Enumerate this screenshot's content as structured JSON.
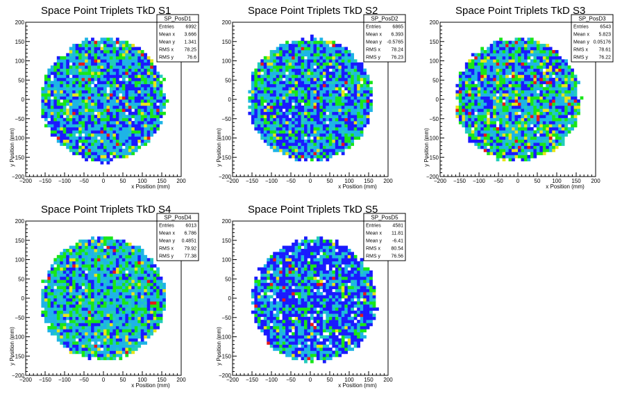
{
  "chart_data": [
    {
      "type": "heatmap",
      "title": "Space Point Triplets TkD S1",
      "xlabel": "x Position (mm)",
      "ylabel": "y Position (mm)",
      "xlim": [
        -200,
        200
      ],
      "ylim": [
        -200,
        200
      ],
      "xticks": [
        "−200",
        "−150",
        "−100",
        "−50",
        "0",
        "50",
        "100",
        "150",
        "200"
      ],
      "yticks": [
        "−200",
        "−150",
        "−100",
        "−50",
        "0",
        "50",
        "100",
        "150",
        "200"
      ],
      "grid": false,
      "stats": {
        "name": "SP_PosD1",
        "rows": [
          {
            "label": "Entries",
            "value": "6992"
          },
          {
            "label": "Mean x",
            "value": "3.666"
          },
          {
            "label": "Mean y",
            "value": "1.341"
          },
          {
            "label": "RMS x",
            "value": "78.25"
          },
          {
            "label": "RMS y",
            "value": "76.6"
          }
        ]
      },
      "footprint": {
        "cx": 0,
        "cy": 0,
        "r": 160
      },
      "density": {
        "fill": 0.985,
        "blue": 0.34,
        "cyan": 0.36,
        "green": 0.2,
        "yellow": 0.055,
        "red": 0.02,
        "seed": 11
      }
    },
    {
      "type": "heatmap",
      "title": "Space Point Triplets TkD S2",
      "xlabel": "x Position (mm)",
      "ylabel": "y Position (mm)",
      "xlim": [
        -200,
        200
      ],
      "ylim": [
        -200,
        200
      ],
      "xticks": [
        "−200",
        "−150",
        "−100",
        "−50",
        "0",
        "50",
        "100",
        "150",
        "200"
      ],
      "yticks": [
        "−200",
        "−150",
        "−100",
        "−50",
        "0",
        "50",
        "100",
        "150",
        "200"
      ],
      "grid": false,
      "stats": {
        "name": "SP_PosD2",
        "rows": [
          {
            "label": "Entries",
            "value": "6865"
          },
          {
            "label": "Mean x",
            "value": "6.393"
          },
          {
            "label": "Mean y",
            "value": "-0.5765"
          },
          {
            "label": "RMS x",
            "value": "78.24"
          },
          {
            "label": "RMS y",
            "value": "76.23"
          }
        ]
      },
      "footprint": {
        "cx": 0,
        "cy": 0,
        "r": 160
      },
      "density": {
        "fill": 0.985,
        "blue": 0.36,
        "cyan": 0.36,
        "green": 0.2,
        "yellow": 0.05,
        "red": 0.015,
        "seed": 23
      }
    },
    {
      "type": "heatmap",
      "title": "Space Point Triplets TkD S3",
      "xlabel": "x Position (mm)",
      "ylabel": "y Position (mm)",
      "xlim": [
        -200,
        200
      ],
      "ylim": [
        -200,
        200
      ],
      "xticks": [
        "−200",
        "−150",
        "−100",
        "−50",
        "0",
        "50",
        "100",
        "150",
        "200"
      ],
      "yticks": [
        "−200",
        "−150",
        "−100",
        "−50",
        "0",
        "50",
        "100",
        "150",
        "200"
      ],
      "grid": false,
      "stats": {
        "name": "SP_PosD3",
        "rows": [
          {
            "label": "Entries",
            "value": "6543"
          },
          {
            "label": "Mean x",
            "value": "5.823"
          },
          {
            "label": "Mean y",
            "value": "0.05176"
          },
          {
            "label": "RMS x",
            "value": "78.61"
          },
          {
            "label": "RMS y",
            "value": "76.22"
          }
        ]
      },
      "footprint": {
        "cx": 0,
        "cy": 0,
        "r": 160
      },
      "density": {
        "fill": 0.98,
        "blue": 0.28,
        "cyan": 0.33,
        "green": 0.24,
        "yellow": 0.09,
        "red": 0.04,
        "seed": 37
      }
    },
    {
      "type": "heatmap",
      "title": "Space Point Triplets TkD S4",
      "xlabel": "x Position (mm)",
      "ylabel": "y Position (mm)",
      "xlim": [
        -200,
        200
      ],
      "ylim": [
        -200,
        200
      ],
      "xticks": [
        "−200",
        "−150",
        "−100",
        "−50",
        "0",
        "50",
        "100",
        "150",
        "200"
      ],
      "yticks": [
        "−200",
        "−150",
        "−100",
        "−50",
        "0",
        "50",
        "100",
        "150",
        "200"
      ],
      "grid": false,
      "stats": {
        "name": "SP_PosD4",
        "rows": [
          {
            "label": "Entries",
            "value": "6013"
          },
          {
            "label": "Mean x",
            "value": "6.786"
          },
          {
            "label": "Mean y",
            "value": "0.4851"
          },
          {
            "label": "RMS x",
            "value": "79.92"
          },
          {
            "label": "RMS y",
            "value": "77.38"
          }
        ]
      },
      "footprint": {
        "cx": 0,
        "cy": 0,
        "r": 160
      },
      "density": {
        "fill": 0.985,
        "blue": 0.22,
        "cyan": 0.44,
        "green": 0.25,
        "yellow": 0.06,
        "red": 0.01,
        "seed": 51
      }
    },
    {
      "type": "heatmap",
      "title": "Space Point Triplets TkD S5",
      "xlabel": "x Position (mm)",
      "ylabel": "y Position (mm)",
      "xlim": [
        -200,
        200
      ],
      "ylim": [
        -200,
        200
      ],
      "xticks": [
        "−200",
        "−150",
        "−100",
        "−50",
        "0",
        "50",
        "100",
        "150",
        "200"
      ],
      "yticks": [
        "−200",
        "−150",
        "−100",
        "−50",
        "0",
        "50",
        "100",
        "150",
        "200"
      ],
      "grid": false,
      "stats": {
        "name": "SP_PosD5",
        "rows": [
          {
            "label": "Entries",
            "value": "4581"
          },
          {
            "label": "Mean x",
            "value": "11.81"
          },
          {
            "label": "Mean y",
            "value": "-6.41"
          },
          {
            "label": "RMS x",
            "value": "80.54"
          },
          {
            "label": "RMS y",
            "value": "76.56"
          }
        ]
      },
      "footprint": {
        "cx": 10,
        "cy": -5,
        "r": 160
      },
      "density": {
        "fill": 0.93,
        "blue": 0.52,
        "cyan": 0.28,
        "green": 0.14,
        "yellow": 0.03,
        "red": 0.02,
        "seed": 73
      }
    }
  ],
  "colors": {
    "blue": "#1a1aff",
    "cyan": "#1eb4e6",
    "teal": "#22ccbb",
    "green": "#19e619",
    "yellow": "#e6e619",
    "red": "#e61919",
    "axis": "#000000",
    "background": "#ffffff"
  }
}
